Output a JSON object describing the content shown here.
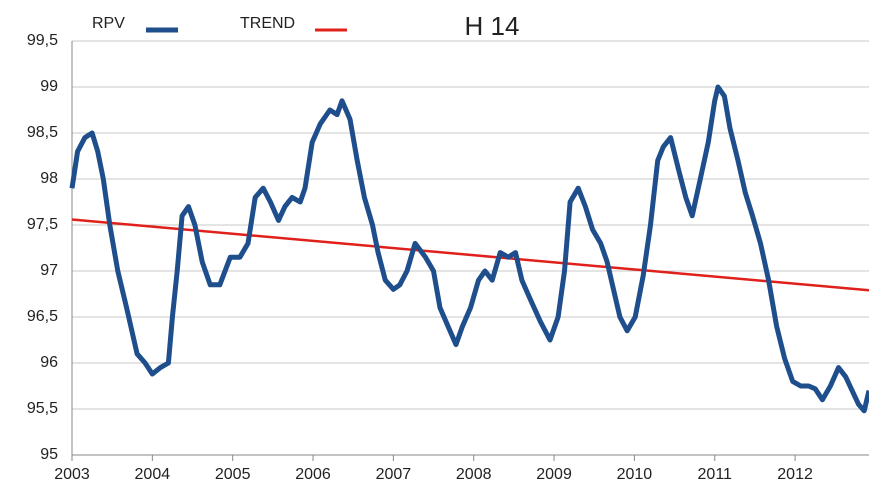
{
  "chart_data": {
    "type": "line",
    "title": "H 14",
    "xlim": [
      2003,
      2012.92
    ],
    "xticks": [
      2003,
      2004,
      2005,
      2006,
      2007,
      2008,
      2009,
      2010,
      2011,
      2012
    ],
    "ylim": [
      95,
      99.5
    ],
    "yticks": [
      95,
      {
        "value": 95.5,
        "label": "95,5"
      },
      96,
      {
        "value": 96.5,
        "label": "96,5"
      },
      97,
      {
        "value": 97.5,
        "label": "97,5"
      },
      98,
      {
        "value": 98.5,
        "label": "98,5"
      },
      99,
      {
        "value": 99.5,
        "label": "99,5"
      }
    ],
    "grid": true,
    "legend": "top",
    "series": [
      {
        "name": "RPV",
        "color": "#1f4e8c",
        "x": [
          2003.0,
          2003.07,
          2003.16,
          2003.25,
          2003.32,
          2003.39,
          2003.47,
          2003.57,
          2003.68,
          2003.81,
          2003.91,
          2004.0,
          2004.1,
          2004.2,
          2004.25,
          2004.31,
          2004.37,
          2004.45,
          2004.53,
          2004.62,
          2004.72,
          2004.84,
          2004.97,
          2005.09,
          2005.19,
          2005.28,
          2005.38,
          2005.47,
          2005.57,
          2005.65,
          2005.74,
          2005.84,
          2005.9,
          2005.99,
          2006.09,
          2006.21,
          2006.3,
          2006.36,
          2006.46,
          2006.55,
          2006.64,
          2006.74,
          2006.81,
          2006.9,
          2007.0,
          2007.08,
          2007.17,
          2007.27,
          2007.4,
          2007.5,
          2007.58,
          2007.68,
          2007.78,
          2007.86,
          2007.96,
          2008.06,
          2008.14,
          2008.23,
          2008.33,
          2008.43,
          2008.52,
          2008.6,
          2008.7,
          2008.83,
          2008.95,
          2009.05,
          2009.13,
          2009.2,
          2009.3,
          2009.39,
          2009.48,
          2009.58,
          2009.66,
          2009.74,
          2009.82,
          2009.91,
          2010.01,
          2010.11,
          2010.2,
          2010.29,
          2010.36,
          2010.45,
          2010.55,
          2010.64,
          2010.72,
          2010.82,
          2010.92,
          2011.0,
          2011.04,
          2011.12,
          2011.19,
          2011.29,
          2011.38,
          2011.47,
          2011.57,
          2011.67,
          2011.77,
          2011.87,
          2011.97,
          2012.07,
          2012.17,
          2012.25,
          2012.34,
          2012.44,
          2012.54,
          2012.63,
          2012.71,
          2012.79,
          2012.86,
          2012.92
        ],
        "values": [
          97.9,
          98.3,
          98.45,
          98.5,
          98.3,
          98.0,
          97.5,
          97.0,
          96.6,
          96.1,
          96.0,
          95.88,
          95.95,
          96.0,
          96.5,
          97.0,
          97.6,
          97.7,
          97.5,
          97.1,
          96.85,
          96.85,
          97.15,
          97.15,
          97.3,
          97.8,
          97.9,
          97.75,
          97.55,
          97.7,
          97.8,
          97.75,
          97.9,
          98.4,
          98.6,
          98.75,
          98.7,
          98.85,
          98.65,
          98.2,
          97.8,
          97.5,
          97.2,
          96.9,
          96.8,
          96.85,
          97.0,
          97.3,
          97.15,
          97.0,
          96.6,
          96.4,
          96.2,
          96.4,
          96.6,
          96.9,
          97.0,
          96.9,
          97.2,
          97.15,
          97.2,
          96.9,
          96.7,
          96.45,
          96.25,
          96.5,
          97.0,
          97.75,
          97.9,
          97.7,
          97.45,
          97.3,
          97.1,
          96.8,
          96.5,
          96.35,
          96.5,
          96.95,
          97.5,
          98.2,
          98.35,
          98.45,
          98.1,
          97.8,
          97.6,
          98.0,
          98.4,
          98.85,
          99.0,
          98.9,
          98.55,
          98.2,
          97.85,
          97.6,
          97.3,
          96.9,
          96.4,
          96.05,
          95.8,
          95.75,
          95.75,
          95.72,
          95.6,
          95.75,
          95.95,
          95.85,
          95.7,
          95.55,
          95.48,
          95.7
        ]
      },
      {
        "name": "TREND",
        "color": "#e0201b",
        "x": [
          2003,
          2012.92
        ],
        "values": [
          97.56,
          96.79
        ]
      }
    ]
  }
}
